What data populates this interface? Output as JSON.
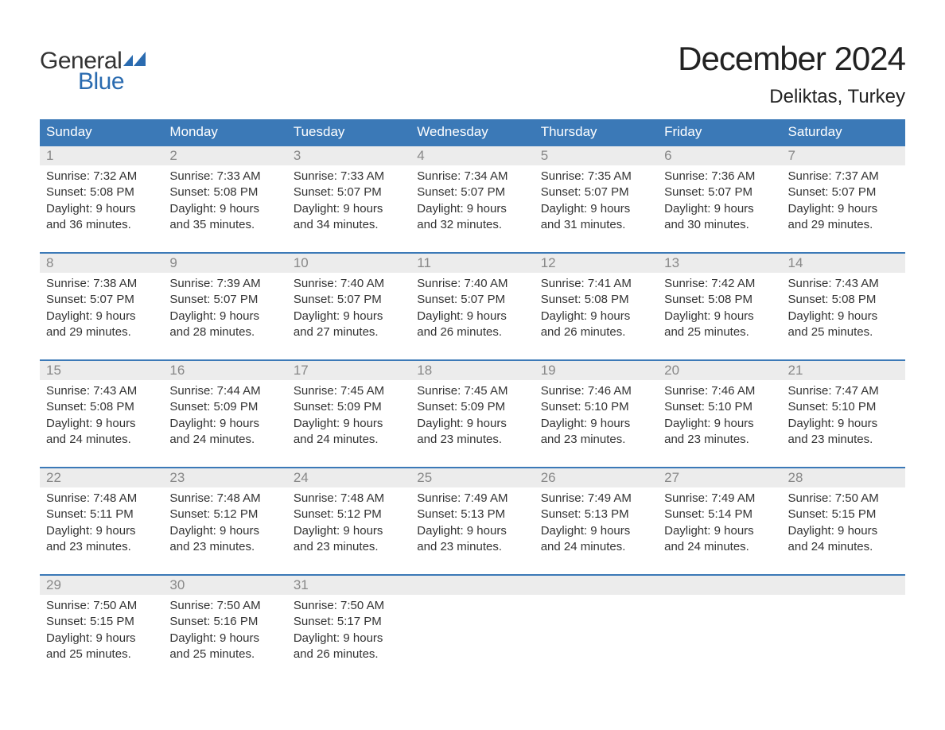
{
  "brand": {
    "general": "General",
    "blue": "Blue",
    "flag_color": "#2a6bb0"
  },
  "title": "December 2024",
  "location": "Deliktas, Turkey",
  "colors": {
    "header_bg": "#3b79b7",
    "header_text": "#ffffff",
    "week_border": "#3b79b7",
    "daynum_bg": "#ececec",
    "daynum_text": "#888888",
    "body_text": "#333333",
    "page_bg": "#ffffff"
  },
  "fonts": {
    "title_size_pt": 32,
    "location_size_pt": 18,
    "dow_size_pt": 13,
    "body_size_pt": 11
  },
  "days_of_week": [
    "Sunday",
    "Monday",
    "Tuesday",
    "Wednesday",
    "Thursday",
    "Friday",
    "Saturday"
  ],
  "weeks": [
    [
      {
        "n": "1",
        "sunrise": "Sunrise: 7:32 AM",
        "sunset": "Sunset: 5:08 PM",
        "d1": "Daylight: 9 hours",
        "d2": "and 36 minutes."
      },
      {
        "n": "2",
        "sunrise": "Sunrise: 7:33 AM",
        "sunset": "Sunset: 5:08 PM",
        "d1": "Daylight: 9 hours",
        "d2": "and 35 minutes."
      },
      {
        "n": "3",
        "sunrise": "Sunrise: 7:33 AM",
        "sunset": "Sunset: 5:07 PM",
        "d1": "Daylight: 9 hours",
        "d2": "and 34 minutes."
      },
      {
        "n": "4",
        "sunrise": "Sunrise: 7:34 AM",
        "sunset": "Sunset: 5:07 PM",
        "d1": "Daylight: 9 hours",
        "d2": "and 32 minutes."
      },
      {
        "n": "5",
        "sunrise": "Sunrise: 7:35 AM",
        "sunset": "Sunset: 5:07 PM",
        "d1": "Daylight: 9 hours",
        "d2": "and 31 minutes."
      },
      {
        "n": "6",
        "sunrise": "Sunrise: 7:36 AM",
        "sunset": "Sunset: 5:07 PM",
        "d1": "Daylight: 9 hours",
        "d2": "and 30 minutes."
      },
      {
        "n": "7",
        "sunrise": "Sunrise: 7:37 AM",
        "sunset": "Sunset: 5:07 PM",
        "d1": "Daylight: 9 hours",
        "d2": "and 29 minutes."
      }
    ],
    [
      {
        "n": "8",
        "sunrise": "Sunrise: 7:38 AM",
        "sunset": "Sunset: 5:07 PM",
        "d1": "Daylight: 9 hours",
        "d2": "and 29 minutes."
      },
      {
        "n": "9",
        "sunrise": "Sunrise: 7:39 AM",
        "sunset": "Sunset: 5:07 PM",
        "d1": "Daylight: 9 hours",
        "d2": "and 28 minutes."
      },
      {
        "n": "10",
        "sunrise": "Sunrise: 7:40 AM",
        "sunset": "Sunset: 5:07 PM",
        "d1": "Daylight: 9 hours",
        "d2": "and 27 minutes."
      },
      {
        "n": "11",
        "sunrise": "Sunrise: 7:40 AM",
        "sunset": "Sunset: 5:07 PM",
        "d1": "Daylight: 9 hours",
        "d2": "and 26 minutes."
      },
      {
        "n": "12",
        "sunrise": "Sunrise: 7:41 AM",
        "sunset": "Sunset: 5:08 PM",
        "d1": "Daylight: 9 hours",
        "d2": "and 26 minutes."
      },
      {
        "n": "13",
        "sunrise": "Sunrise: 7:42 AM",
        "sunset": "Sunset: 5:08 PM",
        "d1": "Daylight: 9 hours",
        "d2": "and 25 minutes."
      },
      {
        "n": "14",
        "sunrise": "Sunrise: 7:43 AM",
        "sunset": "Sunset: 5:08 PM",
        "d1": "Daylight: 9 hours",
        "d2": "and 25 minutes."
      }
    ],
    [
      {
        "n": "15",
        "sunrise": "Sunrise: 7:43 AM",
        "sunset": "Sunset: 5:08 PM",
        "d1": "Daylight: 9 hours",
        "d2": "and 24 minutes."
      },
      {
        "n": "16",
        "sunrise": "Sunrise: 7:44 AM",
        "sunset": "Sunset: 5:09 PM",
        "d1": "Daylight: 9 hours",
        "d2": "and 24 minutes."
      },
      {
        "n": "17",
        "sunrise": "Sunrise: 7:45 AM",
        "sunset": "Sunset: 5:09 PM",
        "d1": "Daylight: 9 hours",
        "d2": "and 24 minutes."
      },
      {
        "n": "18",
        "sunrise": "Sunrise: 7:45 AM",
        "sunset": "Sunset: 5:09 PM",
        "d1": "Daylight: 9 hours",
        "d2": "and 23 minutes."
      },
      {
        "n": "19",
        "sunrise": "Sunrise: 7:46 AM",
        "sunset": "Sunset: 5:10 PM",
        "d1": "Daylight: 9 hours",
        "d2": "and 23 minutes."
      },
      {
        "n": "20",
        "sunrise": "Sunrise: 7:46 AM",
        "sunset": "Sunset: 5:10 PM",
        "d1": "Daylight: 9 hours",
        "d2": "and 23 minutes."
      },
      {
        "n": "21",
        "sunrise": "Sunrise: 7:47 AM",
        "sunset": "Sunset: 5:10 PM",
        "d1": "Daylight: 9 hours",
        "d2": "and 23 minutes."
      }
    ],
    [
      {
        "n": "22",
        "sunrise": "Sunrise: 7:48 AM",
        "sunset": "Sunset: 5:11 PM",
        "d1": "Daylight: 9 hours",
        "d2": "and 23 minutes."
      },
      {
        "n": "23",
        "sunrise": "Sunrise: 7:48 AM",
        "sunset": "Sunset: 5:12 PM",
        "d1": "Daylight: 9 hours",
        "d2": "and 23 minutes."
      },
      {
        "n": "24",
        "sunrise": "Sunrise: 7:48 AM",
        "sunset": "Sunset: 5:12 PM",
        "d1": "Daylight: 9 hours",
        "d2": "and 23 minutes."
      },
      {
        "n": "25",
        "sunrise": "Sunrise: 7:49 AM",
        "sunset": "Sunset: 5:13 PM",
        "d1": "Daylight: 9 hours",
        "d2": "and 23 minutes."
      },
      {
        "n": "26",
        "sunrise": "Sunrise: 7:49 AM",
        "sunset": "Sunset: 5:13 PM",
        "d1": "Daylight: 9 hours",
        "d2": "and 24 minutes."
      },
      {
        "n": "27",
        "sunrise": "Sunrise: 7:49 AM",
        "sunset": "Sunset: 5:14 PM",
        "d1": "Daylight: 9 hours",
        "d2": "and 24 minutes."
      },
      {
        "n": "28",
        "sunrise": "Sunrise: 7:50 AM",
        "sunset": "Sunset: 5:15 PM",
        "d1": "Daylight: 9 hours",
        "d2": "and 24 minutes."
      }
    ],
    [
      {
        "n": "29",
        "sunrise": "Sunrise: 7:50 AM",
        "sunset": "Sunset: 5:15 PM",
        "d1": "Daylight: 9 hours",
        "d2": "and 25 minutes."
      },
      {
        "n": "30",
        "sunrise": "Sunrise: 7:50 AM",
        "sunset": "Sunset: 5:16 PM",
        "d1": "Daylight: 9 hours",
        "d2": "and 25 minutes."
      },
      {
        "n": "31",
        "sunrise": "Sunrise: 7:50 AM",
        "sunset": "Sunset: 5:17 PM",
        "d1": "Daylight: 9 hours",
        "d2": "and 26 minutes."
      },
      {
        "empty": true
      },
      {
        "empty": true
      },
      {
        "empty": true
      },
      {
        "empty": true
      }
    ]
  ]
}
